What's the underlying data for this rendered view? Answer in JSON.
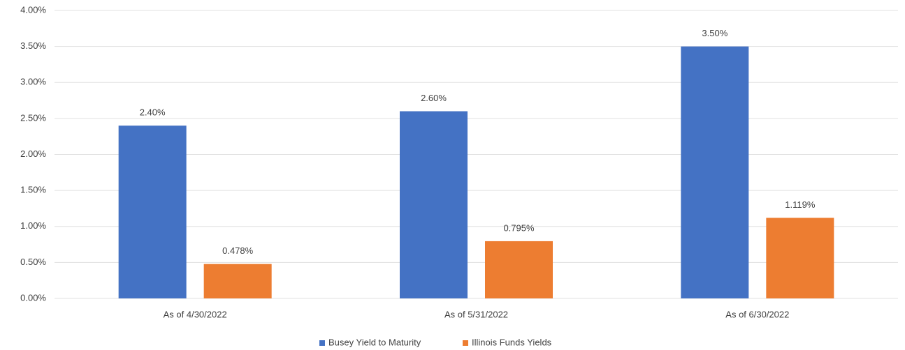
{
  "chart_data": {
    "type": "bar",
    "categories": [
      "As of 4/30/2022",
      "As of 5/31/2022",
      "As of 6/30/2022"
    ],
    "series": [
      {
        "name": "Busey Yield to Maturity",
        "color": "#4472c4",
        "values": [
          2.4,
          2.6,
          3.5
        ],
        "value_labels": [
          "2.40%",
          "2.60%",
          "3.50%"
        ]
      },
      {
        "name": "Illinois Funds Yields",
        "color": "#ed7d31",
        "values": [
          0.478,
          0.795,
          1.119
        ],
        "value_labels": [
          "0.478%",
          "0.795%",
          "1.119%"
        ]
      }
    ],
    "ylim": [
      0,
      4
    ],
    "yticks": [
      {
        "value": 0,
        "label": "0.00%"
      },
      {
        "value": 0.5,
        "label": "0.50%"
      },
      {
        "value": 1,
        "label": "1.00%"
      },
      {
        "value": 1.5,
        "label": "1.50%"
      },
      {
        "value": 2,
        "label": "2.00%"
      },
      {
        "value": 2.5,
        "label": "2.50%"
      },
      {
        "value": 3,
        "label": "3.00%"
      },
      {
        "value": 3.5,
        "label": "3.50%"
      },
      {
        "value": 4,
        "label": "4.00%"
      }
    ],
    "grid": true,
    "legend": "bottom"
  }
}
